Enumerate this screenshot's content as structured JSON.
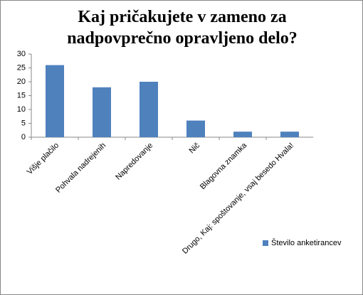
{
  "chart_data": {
    "type": "bar",
    "title": "Kaj pričakujete v zameno za nadpovprečno opravljeno delo?",
    "categories": [
      "Višje plačilo",
      "Pohvala nadrejenih",
      "Napredovanje",
      "Nič",
      "Blagovna znamka",
      "Drugo, Kaj:  spoštovanje, vsaj besedo Hvala!"
    ],
    "series": [
      {
        "name": "Število anketirancev",
        "color": "#4f81bd",
        "values": [
          26,
          18,
          20,
          6,
          2,
          2
        ]
      }
    ],
    "ylim": [
      0,
      30
    ],
    "yticks": [
      0,
      5,
      10,
      15,
      20,
      25,
      30
    ],
    "grid": false,
    "legend": "right"
  }
}
